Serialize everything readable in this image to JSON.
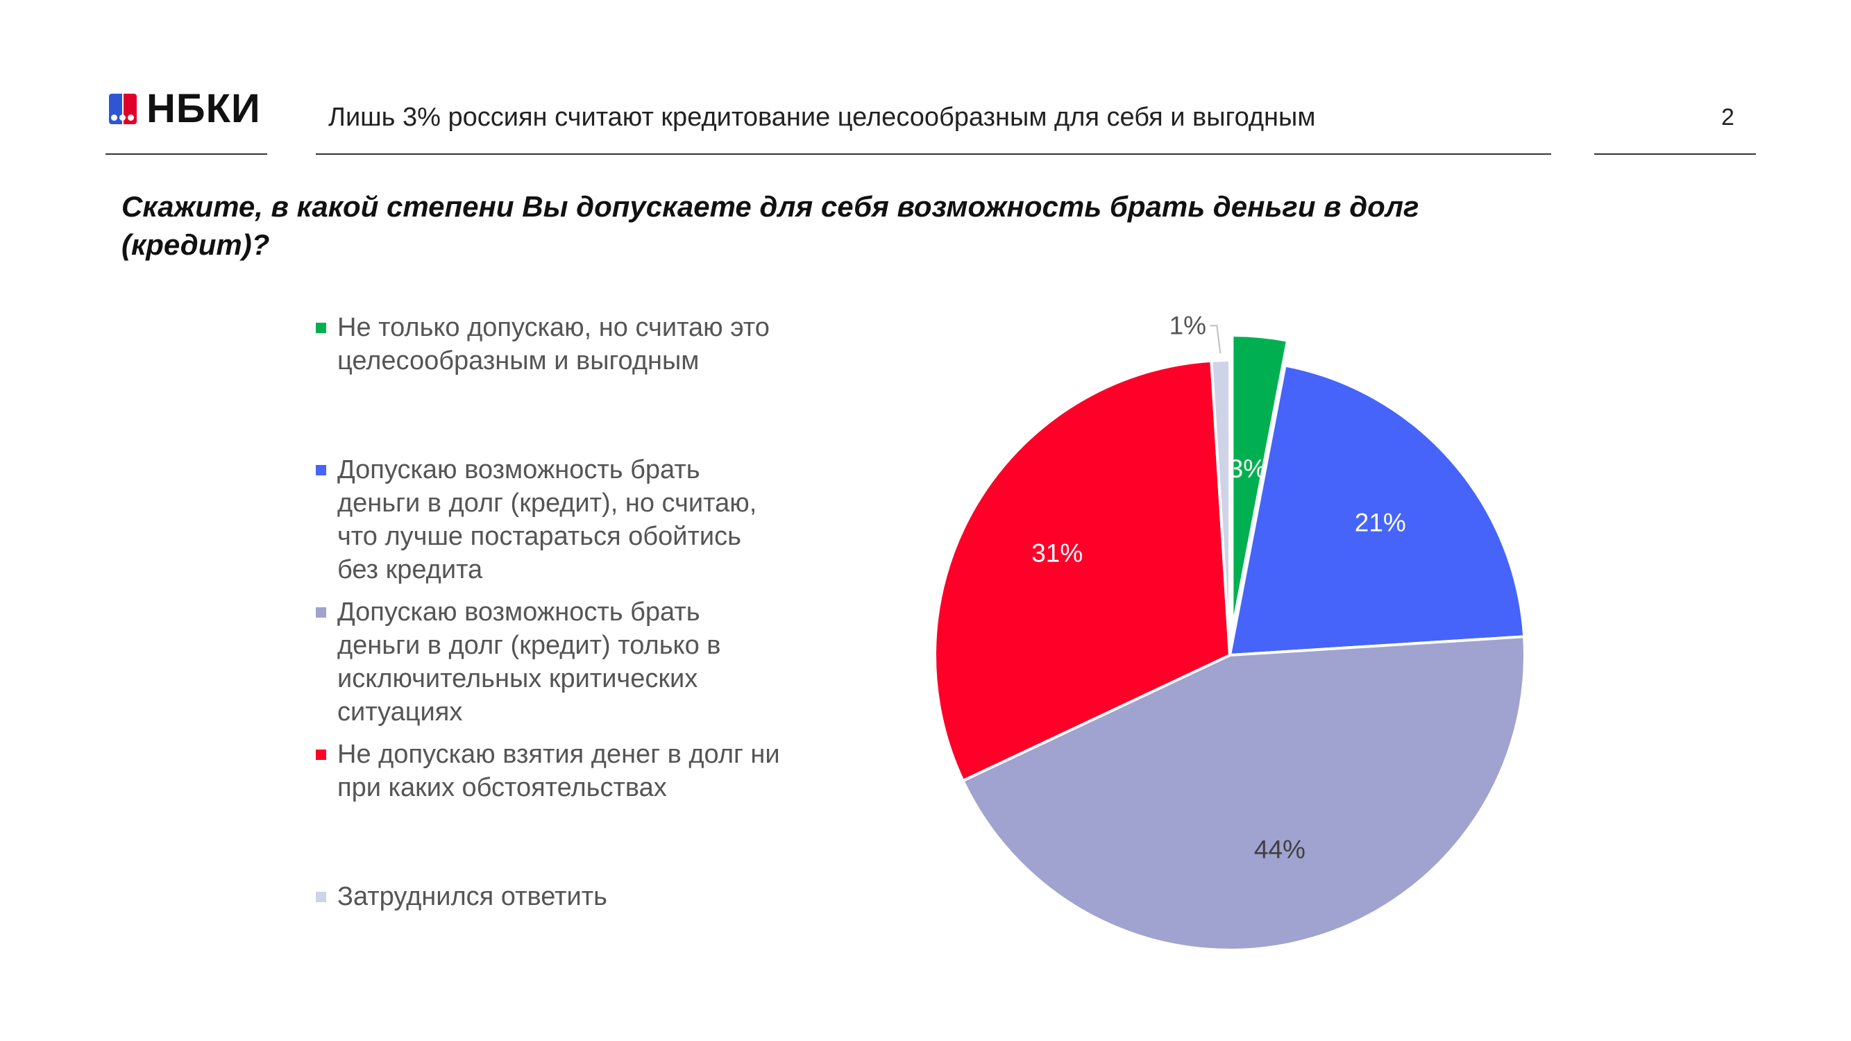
{
  "header": {
    "logo_text": "НБКИ",
    "title": "Лишь 3% россиян считают кредитование целесообразным для себя и выгодным",
    "page_number": "2"
  },
  "question": "Скажите, в какой степени Вы допускаете для себя возможность брать деньги в долг (кредит)?",
  "colors": {
    "green": "#00b050",
    "blue": "#4664fa",
    "lavender": "#a0a3cf",
    "red": "#ff0028",
    "light": "#cfd3e8"
  },
  "chart_data": {
    "type": "pie",
    "title": "",
    "legend_position": "left",
    "categories": [
      "Не только допускаю, но считаю это целесообразным и выгодным",
      "Допускаю возможность брать деньги в долг (кредит), но считаю, что лучше постараться обойтись без кредита",
      "Допускаю возможность брать деньги в долг (кредит) только в исключительных критических ситуациях",
      "Не допускаю взятия денег в долг ни при каких обстоятельствах",
      "Затруднился ответить"
    ],
    "values": [
      3,
      21,
      44,
      31,
      1
    ],
    "labels": [
      "3%",
      "21%",
      "44%",
      "31%",
      "1%"
    ],
    "colors": [
      "#00b050",
      "#4664fa",
      "#a0a3cf",
      "#ff0028",
      "#cfd3e8"
    ],
    "label_colors": [
      "#ffffff",
      "#ffffff",
      "#404040",
      "#ffffff",
      "#555555"
    ],
    "exploded": [
      0
    ]
  }
}
